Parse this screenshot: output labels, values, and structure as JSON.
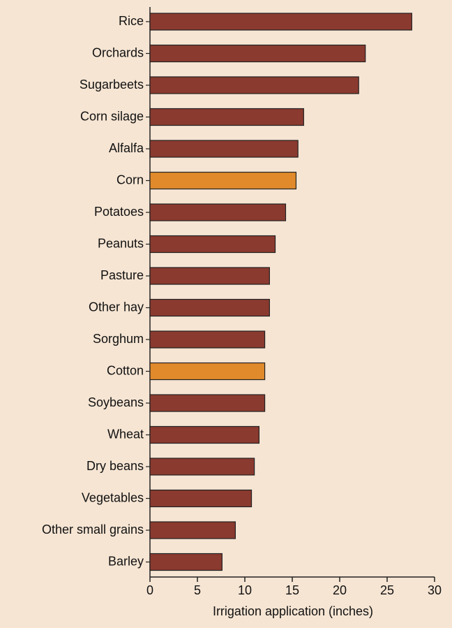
{
  "chart_data": {
    "type": "bar",
    "orientation": "horizontal",
    "categories": [
      "Rice",
      "Orchards",
      "Sugarbeets",
      "Corn silage",
      "Alfalfa",
      "Corn",
      "Potatoes",
      "Peanuts",
      "Pasture",
      "Other hay",
      "Sorghum",
      "Cotton",
      "Soybeans",
      "Wheat",
      "Dry beans",
      "Vegetables",
      "Other small grains",
      "Barley"
    ],
    "values": [
      27.6,
      22.7,
      22.0,
      16.2,
      15.6,
      15.4,
      14.3,
      13.2,
      12.6,
      12.6,
      12.1,
      12.1,
      12.1,
      11.5,
      11.0,
      10.7,
      9.0,
      7.6
    ],
    "colors": [
      "#8b3a2f",
      "#8b3a2f",
      "#8b3a2f",
      "#8b3a2f",
      "#8b3a2f",
      "#e08a2c",
      "#8b3a2f",
      "#8b3a2f",
      "#8b3a2f",
      "#8b3a2f",
      "#8b3a2f",
      "#e08a2c",
      "#8b3a2f",
      "#8b3a2f",
      "#8b3a2f",
      "#8b3a2f",
      "#8b3a2f",
      "#8b3a2f"
    ],
    "xlabel": "Irrigation application (inches)",
    "xlim": [
      0,
      30
    ],
    "xticks": [
      0,
      5,
      10,
      15,
      20,
      25,
      30
    ],
    "grid": false
  }
}
